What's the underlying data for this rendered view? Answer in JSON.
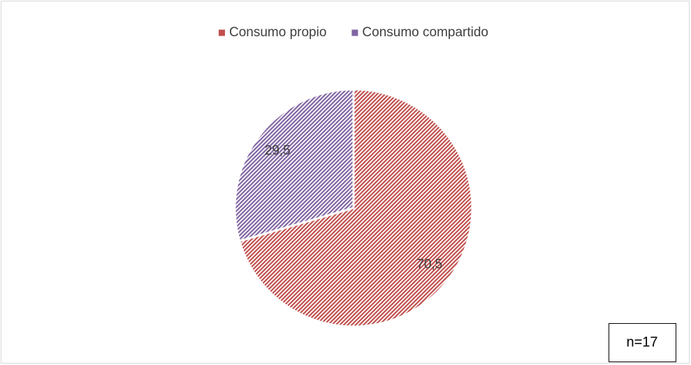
{
  "chart_data": {
    "type": "pie",
    "categories": [
      "Consumo propio",
      "Consumo compartido"
    ],
    "values": [
      70.5,
      29.5
    ],
    "value_labels": [
      "70,5",
      "29,5"
    ],
    "colors": [
      "#c0504d",
      "#8064a2"
    ],
    "legend": "top",
    "annotation": "n=17"
  }
}
